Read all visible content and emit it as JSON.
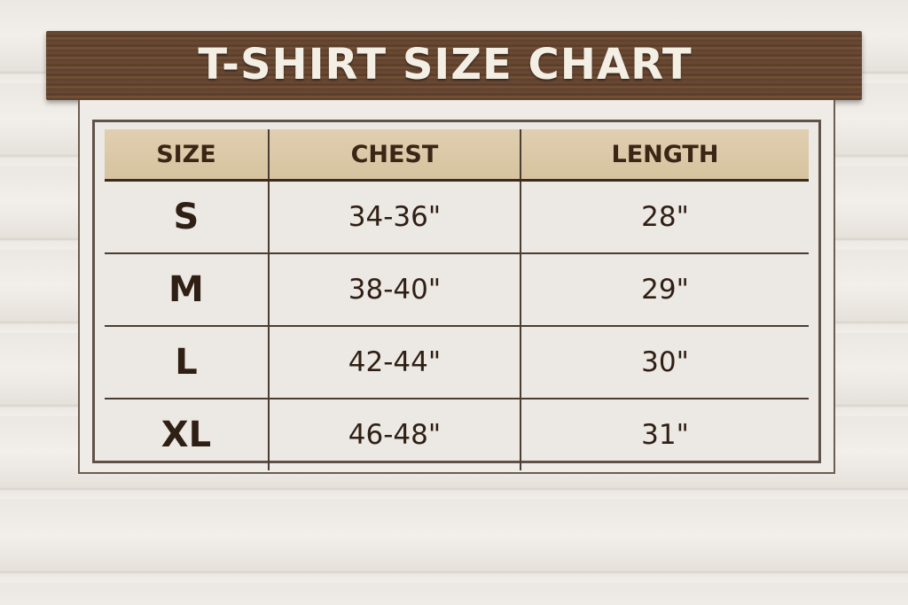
{
  "title": "T-SHIRT SIZE CHART",
  "table": {
    "headers": [
      "SIZE",
      "CHEST",
      "LENGTH"
    ],
    "rows": [
      [
        "S",
        "34-36\"",
        "28\""
      ],
      [
        "M",
        "38-40\"",
        "29\""
      ],
      [
        "L",
        "42-44\"",
        "30\""
      ],
      [
        "XL",
        "46-48\"",
        "31\""
      ]
    ]
  },
  "colors": {
    "board": "#5e4230",
    "header": "#d9c7a5",
    "text": "#3b2516"
  }
}
